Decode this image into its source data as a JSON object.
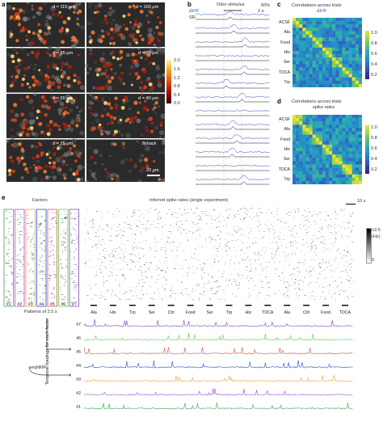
{
  "panels": {
    "a": "a",
    "b": "b",
    "c": "c",
    "d": "d",
    "e": "e"
  },
  "panel_a": {
    "tiles_left": [
      "d = 115 μm",
      "d = 85 μm",
      "d = 55 μm",
      "d = 25 μm"
    ],
    "tiles_right": [
      "d = 100 μm",
      "d = 70 μm",
      "d = 40 μm",
      "flyback"
    ],
    "colorbar_ticks": [
      "2.0",
      "1.6",
      "1.2",
      "0.8",
      "0.4",
      "0.0"
    ],
    "scale_label": "20 μm"
  },
  "panel_b": {
    "title": "Odor stimulus",
    "dff_label": "ΔF/F",
    "sr_label": "SR",
    "scale_y": "50%",
    "scale_x": "2 s",
    "n_traces": 13
  },
  "panel_c": {
    "title_line1": "Correlations across trials",
    "title_line2": "ΔF/F",
    "row_labels": [
      "ACSF",
      "Ala",
      "Food",
      "His",
      "Ser",
      "TDCA",
      "Trp"
    ],
    "colorbar_ticks": [
      "1.0",
      "0.8",
      "0.6",
      "0.4",
      "0.2"
    ]
  },
  "panel_d": {
    "title_line1": "Correlations across trials",
    "title_line2": "spike rates",
    "row_labels": [
      "ACSF",
      "Ala",
      "Food",
      "His",
      "Ser",
      "TDCA",
      "Trp"
    ],
    "colorbar_ticks": [
      "1.0",
      "0.8",
      "0.6",
      "0.4",
      "0.2"
    ]
  },
  "panel_e": {
    "factors_title": "Factors",
    "factor_labels": [
      "#1",
      "#2",
      "#3",
      "#4",
      "#5",
      "#6",
      "#7"
    ],
    "patterns_label": "Patterns of 2.5 s",
    "raster_title": "Inferred spike rates (single experiment)",
    "time_scale": "10 s",
    "colorbar_top": "≥2.5",
    "colorbar_unit": "(Hz)",
    "colorbar_bottom": "0",
    "stimuli": [
      "Ala",
      "His",
      "Trp",
      "Ser",
      "Ctrl",
      "Food",
      "Ser",
      "Trp",
      "His",
      "TDCA",
      "Ala",
      "Ctrl",
      "Food",
      "TDCA"
    ],
    "seqnmf_label": "seqNMF",
    "loadings_label": "Temporal loadings for each factor",
    "loading_labels": [
      "#7",
      "#6",
      "#5",
      "#4",
      "#3",
      "#2",
      "#1"
    ],
    "colors": {
      "f1": "#3aa55a",
      "f2": "#a24fd0",
      "f3": "#f2a030",
      "f4": "#2c4fd8",
      "f5": "#e55050",
      "f6": "#6cc84c",
      "f7": "#8a45c8"
    }
  }
}
